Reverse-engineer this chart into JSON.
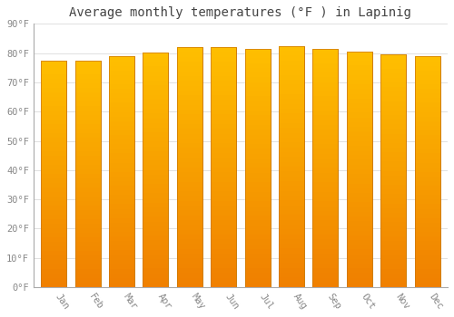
{
  "title": "Average monthly temperatures (°F ) in Lapinig",
  "months": [
    "Jan",
    "Feb",
    "Mar",
    "Apr",
    "May",
    "Jun",
    "Jul",
    "Aug",
    "Sep",
    "Oct",
    "Nov",
    "Dec"
  ],
  "values": [
    77.5,
    77.5,
    78.8,
    80.2,
    82.0,
    82.0,
    81.5,
    82.4,
    81.5,
    80.6,
    79.5,
    78.8
  ],
  "bar_color_main": "#FFA500",
  "bar_color_gradient_light": "#FFD700",
  "bar_color_gradient_dark": "#F08000",
  "bar_edge_color": "#CC7700",
  "ylim": [
    0,
    90
  ],
  "yticks": [
    0,
    10,
    20,
    30,
    40,
    50,
    60,
    70,
    80,
    90
  ],
  "ytick_labels": [
    "0°F",
    "10°F",
    "20°F",
    "30°F",
    "40°F",
    "50°F",
    "60°F",
    "70°F",
    "80°F",
    "90°F"
  ],
  "background_color": "#FFFFFF",
  "grid_color": "#E0E0E0",
  "title_fontsize": 10,
  "tick_fontsize": 7.5,
  "font_family": "monospace",
  "bar_width": 0.75
}
